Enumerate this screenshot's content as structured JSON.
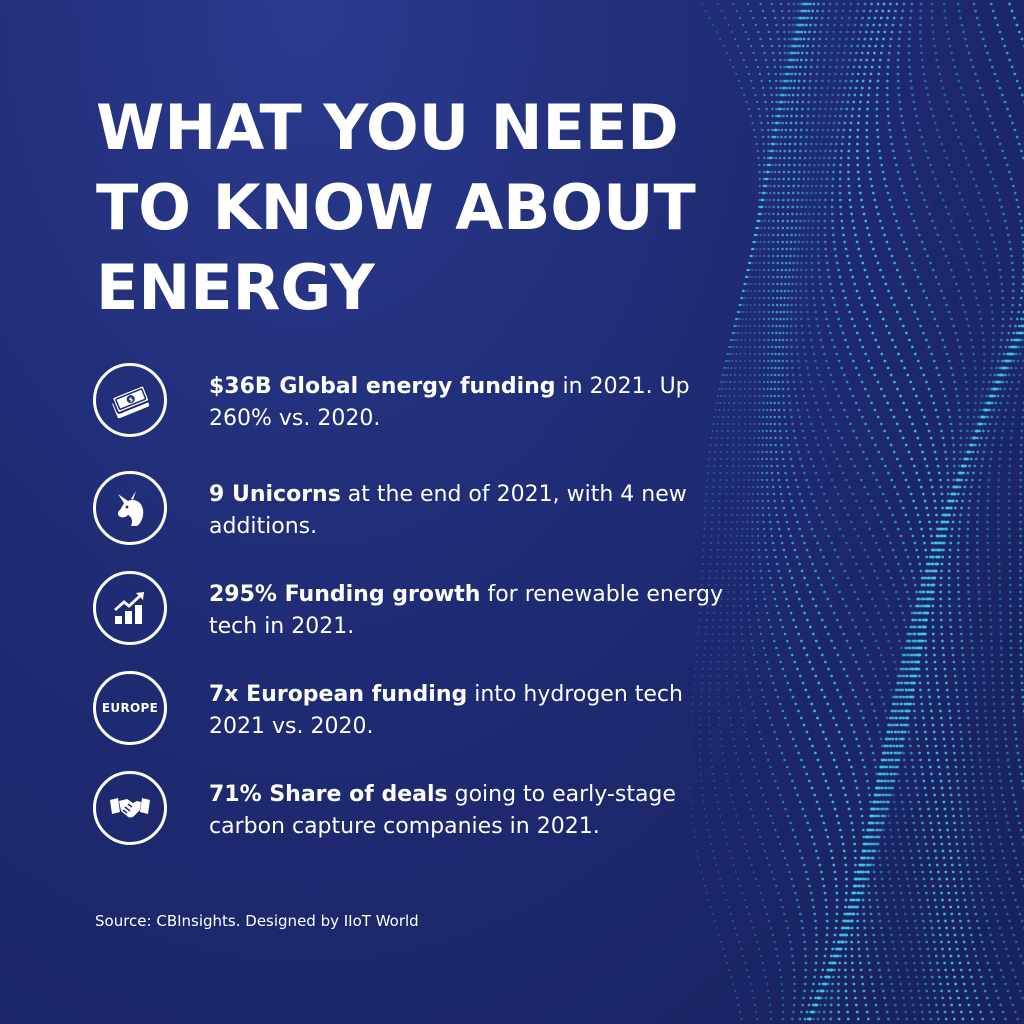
{
  "title_lines": [
    "WHAT YOU NEED",
    "TO KNOW ABOUT",
    "ENERGY"
  ],
  "facts": [
    {
      "icon": "money-bill-icon",
      "bold": "$36B Global energy funding",
      "rest": " in 2021. Up 260% vs. 2020."
    },
    {
      "icon": "unicorn-icon",
      "bold": "9 Unicorns",
      "rest": " at the end of 2021, with 4 new additions."
    },
    {
      "icon": "growth-chart-icon",
      "bold": "295% Funding growth",
      "rest": " for renewable energy tech in 2021."
    },
    {
      "icon": "europe-badge-icon",
      "icon_label": "EUROPE",
      "bold": "7x European funding",
      "rest": " into hydrogen tech 2021 vs. 2020."
    },
    {
      "icon": "handshake-icon",
      "bold": "71% Share of deals",
      "rest": " going to early-stage carbon capture companies in 2021."
    }
  ],
  "source": "Source: CBInsights. Designed by IIoT World",
  "colors": {
    "background": "#1f2b72",
    "accent_dots": "#3fc6e0",
    "text": "#ffffff"
  }
}
